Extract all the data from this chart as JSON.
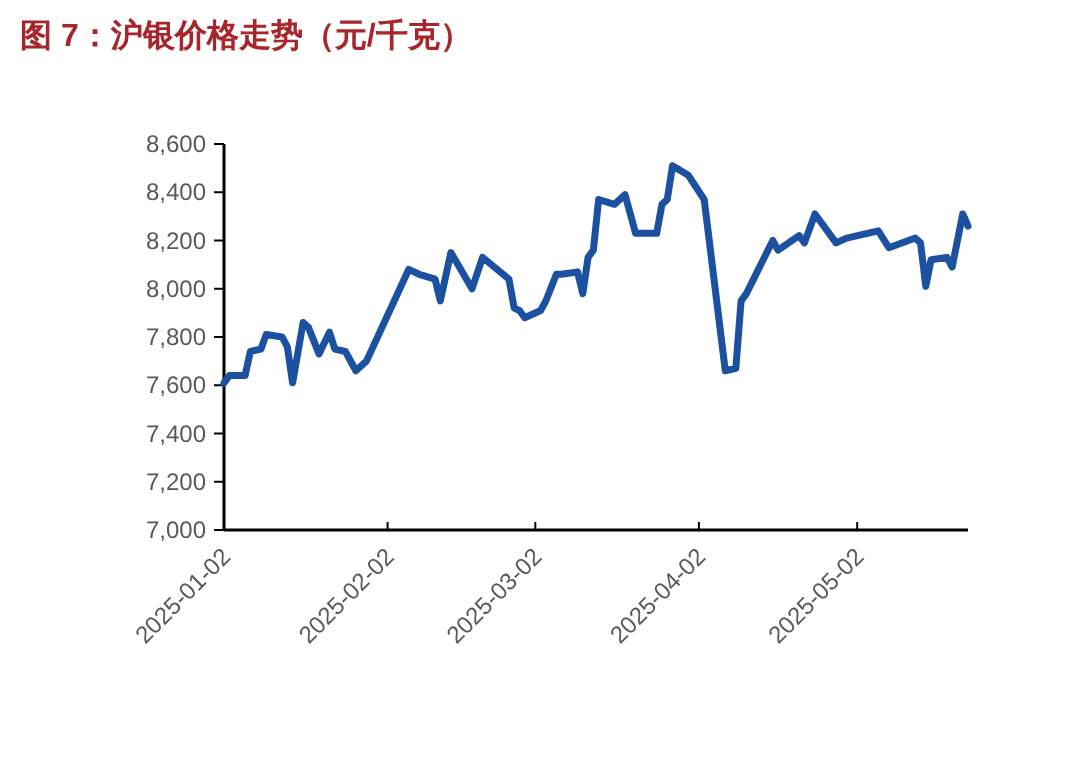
{
  "chart_data": {
    "type": "line",
    "title": "图 7：沪银价格走势（元/千克）",
    "x": [
      "2025-01-02",
      "2025-01-03",
      "2025-01-06",
      "2025-01-07",
      "2025-01-09",
      "2025-01-10",
      "2025-01-13",
      "2025-01-14",
      "2025-01-15",
      "2025-01-17",
      "2025-01-18",
      "2025-01-20",
      "2025-01-22",
      "2025-01-23",
      "2025-01-25",
      "2025-01-27",
      "2025-01-29",
      "2025-02-06",
      "2025-02-08",
      "2025-02-11",
      "2025-02-12",
      "2025-02-14",
      "2025-02-18",
      "2025-02-20",
      "2025-02-25",
      "2025-02-26",
      "2025-02-27",
      "2025-02-28",
      "2025-03-03",
      "2025-03-04",
      "2025-03-06",
      "2025-03-07",
      "2025-03-10",
      "2025-03-11",
      "2025-03-12",
      "2025-03-13",
      "2025-03-14",
      "2025-03-17",
      "2025-03-19",
      "2025-03-21",
      "2025-03-25",
      "2025-03-26",
      "2025-03-27",
      "2025-03-28",
      "2025-03-31",
      "2025-04-03",
      "2025-04-07",
      "2025-04-09",
      "2025-04-10",
      "2025-04-11",
      "2025-04-16",
      "2025-04-17",
      "2025-04-21",
      "2025-04-22",
      "2025-04-24",
      "2025-04-28",
      "2025-04-30",
      "2025-05-06",
      "2025-05-08",
      "2025-05-13",
      "2025-05-14",
      "2025-05-15",
      "2025-05-16",
      "2025-05-19",
      "2025-05-20",
      "2025-05-22",
      "2025-05-23"
    ],
    "series": [
      {
        "color": "#1c50a0",
        "values": [
          7610,
          7640,
          7640,
          7740,
          7750,
          7810,
          7800,
          7760,
          7610,
          7860,
          7840,
          7730,
          7820,
          7750,
          7740,
          7660,
          7700,
          8080,
          8060,
          8040,
          7950,
          8150,
          8000,
          8130,
          8040,
          7920,
          7910,
          7880,
          7910,
          7950,
          8060,
          8060,
          8070,
          7980,
          8130,
          8160,
          8370,
          8350,
          8390,
          8230,
          8230,
          8350,
          8370,
          8510,
          8470,
          8370,
          7660,
          7670,
          7950,
          7980,
          8200,
          8160,
          8220,
          8190,
          8310,
          8190,
          8210,
          8240,
          8170,
          8210,
          8190,
          8010,
          8120,
          8130,
          8090,
          8310,
          8260
        ]
      }
    ],
    "xlim": [
      "2025-01-02",
      "2025-05-23"
    ],
    "xticks": [
      "2025-01-02",
      "2025-02-02",
      "2025-03-02",
      "2025-04-02",
      "2025-05-02"
    ],
    "ylim": [
      7000,
      8600
    ],
    "yticks": [
      {
        "value": 7000,
        "label": "7,000"
      },
      {
        "value": 7200,
        "label": "7,200"
      },
      {
        "value": 7400,
        "label": "7,400"
      },
      {
        "value": 7600,
        "label": "7,600"
      },
      {
        "value": 7800,
        "label": "7,800"
      },
      {
        "value": 8000,
        "label": "8,000"
      },
      {
        "value": 8200,
        "label": "8,200"
      },
      {
        "value": 8400,
        "label": "8,400"
      },
      {
        "value": 8600,
        "label": "8,600"
      }
    ],
    "grid": false
  }
}
